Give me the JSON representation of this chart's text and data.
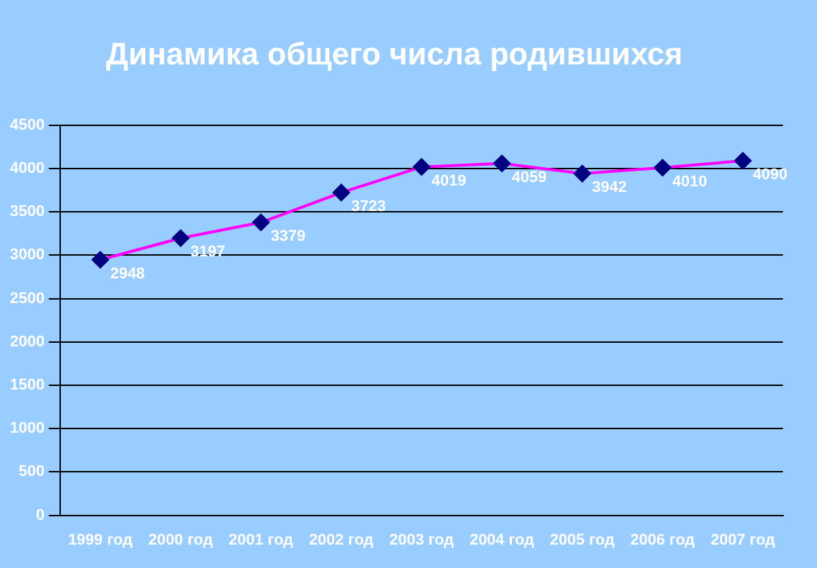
{
  "chart_data": {
    "type": "line",
    "title": "Динамика общего числа родившихся",
    "categories": [
      "1999 год",
      "2000 год",
      "2001 год",
      "2002 год",
      "2003 год",
      "2004 год",
      "2005 год",
      "2006 год",
      "2007 год"
    ],
    "series": [
      {
        "color": "#ff00ff",
        "values": [
          2948,
          3197,
          3379,
          3723,
          4019,
          4059,
          3942,
          4010,
          4090
        ]
      }
    ],
    "ylim": [
      0,
      4500
    ],
    "yticks": [
      0,
      500,
      1000,
      1500,
      2000,
      2500,
      3000,
      3500,
      4000,
      4500
    ],
    "grid": "y",
    "legend": false,
    "marker": "diamond",
    "line_style": "solid",
    "data_labels": true
  }
}
